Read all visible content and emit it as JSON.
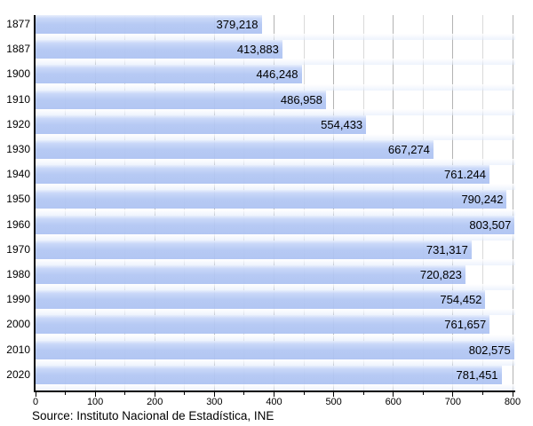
{
  "chart_data": {
    "type": "bar",
    "orientation": "horizontal",
    "title": "",
    "xlabel": "",
    "ylabel": "",
    "categories": [
      "1877",
      "1887",
      "1900",
      "1910",
      "1920",
      "1930",
      "1940",
      "1950",
      "1960",
      "1970",
      "1980",
      "1990",
      "2000",
      "2010",
      "2020"
    ],
    "values": [
      379218,
      413883,
      446248,
      486958,
      554433,
      667274,
      761244,
      790242,
      803507,
      731317,
      720823,
      754452,
      761657,
      802575,
      781451
    ],
    "value_labels": [
      "379,218",
      "413,883",
      "446,248",
      "486,958",
      "554,433",
      "667,274",
      "761.244",
      "790,242",
      "803,507",
      "731,317",
      "720,823",
      "754,452",
      "761,657",
      "802,575",
      "781,451"
    ],
    "x_ticks_major": [
      0,
      100,
      200,
      300,
      400,
      500,
      600,
      700,
      800
    ],
    "x_ticks_minor": [
      50,
      150,
      250,
      350,
      450,
      550,
      650,
      750
    ],
    "xlim": [
      0,
      805
    ],
    "axis_unit": 1000,
    "grid": true,
    "legend": false,
    "colors": {
      "bar": "#b3c7f3",
      "bar_highlight": "#e7eefc",
      "grid_major": "#b3b3b3",
      "grid_minor": "#d9d9d9",
      "axis": "#000000",
      "text": "#000000",
      "background": "#ffffff"
    }
  },
  "source": {
    "text": "Source: Instituto Nacional de Estadística, INE"
  }
}
